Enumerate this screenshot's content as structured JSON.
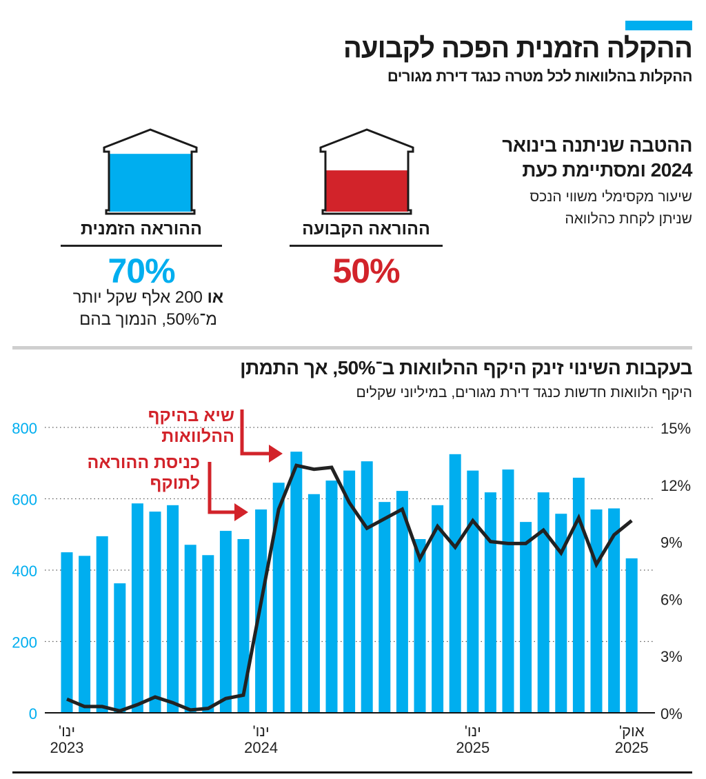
{
  "header": {
    "title": "ההקלה הזמנית הפכה לקבועה",
    "subtitle": "ההקלות בהלוואות לכל מטרה כנגד דירת מגורים"
  },
  "benefit": {
    "heading_line1": "ההטבה שניתנה בינואר",
    "heading_line2": "2024 ומסתיימת כעת",
    "desc_line1": "שיעור מקסימלי משווי הנכס",
    "desc_line2": "שניתן לקחת כהלוואה"
  },
  "provisions": [
    {
      "label": "ההוראה הקבועה",
      "value_text": "50%",
      "value": 50,
      "color": "#d2232a"
    },
    {
      "label": "ההוראה הזמנית",
      "value_text": "70%",
      "value": 70,
      "color": "#00aeef",
      "note_bold": "או",
      "note_line1_rest": "200 אלף שקל יותר",
      "note_line2": "מ־50%, הנמוך בהם"
    }
  ],
  "chart_data": {
    "type": "bar+line",
    "title": "בעקבות השינוי זינק היקף ההלוואות ב־50%, אך התמתן",
    "subtitle": "היקף הלוואות חדשות כנגד דירת מגורים, במיליוני שקלים",
    "y_left": {
      "range": [
        0,
        800
      ],
      "ticks": [
        "0",
        "200",
        "400",
        "600",
        "800"
      ],
      "color": "#00aeef"
    },
    "y_right": {
      "range": [
        0,
        15
      ],
      "ticks": [
        "0%",
        "3%",
        "6%",
        "9%",
        "12%",
        "15%"
      ]
    },
    "grid": true,
    "x_ticks": [
      {
        "index": 0,
        "line1": "ינו'",
        "line2": "2023"
      },
      {
        "index": 11,
        "line1": "ינו'",
        "line2": "2024"
      },
      {
        "index": 23,
        "line1": "ינו'",
        "line2": "2025"
      },
      {
        "index": 32,
        "line1": "אוק'",
        "line2": "2025"
      }
    ],
    "bars": {
      "color": "#00aeef",
      "axis": "left",
      "values": [
        450,
        440,
        495,
        363,
        587,
        564,
        582,
        471,
        442,
        510,
        487,
        570,
        645,
        732,
        613,
        651,
        679,
        705,
        591,
        622,
        487,
        582,
        725,
        679,
        618,
        682,
        535,
        618,
        558,
        659,
        570,
        573,
        433
      ]
    },
    "line": {
      "color": "#222222",
      "axis": "right",
      "values": [
        0.72,
        0.33,
        0.33,
        0.1,
        0.43,
        0.83,
        0.53,
        0.15,
        0.23,
        0.75,
        0.93,
        5.8,
        10.7,
        13.0,
        12.8,
        12.9,
        11.05,
        9.7,
        10.2,
        10.7,
        8.1,
        9.8,
        8.7,
        10.1,
        9.0,
        8.9,
        8.9,
        9.6,
        8.4,
        10.25,
        7.8,
        9.35,
        10.1
      ]
    },
    "annotations": [
      {
        "line1": "שיא בהיקף",
        "line2": "ההלוואות",
        "color": "#d2232a"
      },
      {
        "line1": "כניסת ההוראה",
        "line2": "לתוקף",
        "color": "#d2232a"
      }
    ]
  }
}
